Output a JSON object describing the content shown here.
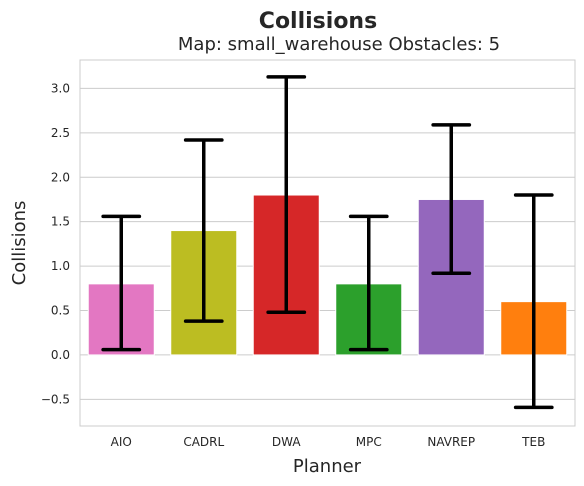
{
  "chart_data": {
    "type": "bar",
    "title": "Collisions",
    "subtitle": "Map: small_warehouse Obstacles: 5",
    "xlabel": "Planner",
    "ylabel": "Collisions",
    "categories": [
      "AIO",
      "CADRL",
      "DWA",
      "MPC",
      "NAVREP",
      "TEB"
    ],
    "values": [
      0.8,
      1.4,
      1.8,
      0.8,
      1.75,
      0.6
    ],
    "error_low": [
      0.06,
      0.38,
      0.48,
      0.06,
      0.92,
      -0.59
    ],
    "error_high": [
      1.56,
      2.42,
      3.13,
      1.56,
      2.59,
      1.8
    ],
    "colors": [
      "#e377c2",
      "#bcbd22",
      "#d62728",
      "#2ca02c",
      "#9467bd",
      "#ff7f0e"
    ],
    "ylim": [
      -0.8,
      3.32
    ],
    "yticks": [
      -0.5,
      0.0,
      0.5,
      1.0,
      1.5,
      2.0,
      2.5,
      3.0
    ],
    "ytick_labels": [
      "−0.5",
      "0.0",
      "0.5",
      "1.0",
      "1.5",
      "2.0",
      "2.5",
      "3.0"
    ],
    "grid": true,
    "legend": "none"
  }
}
